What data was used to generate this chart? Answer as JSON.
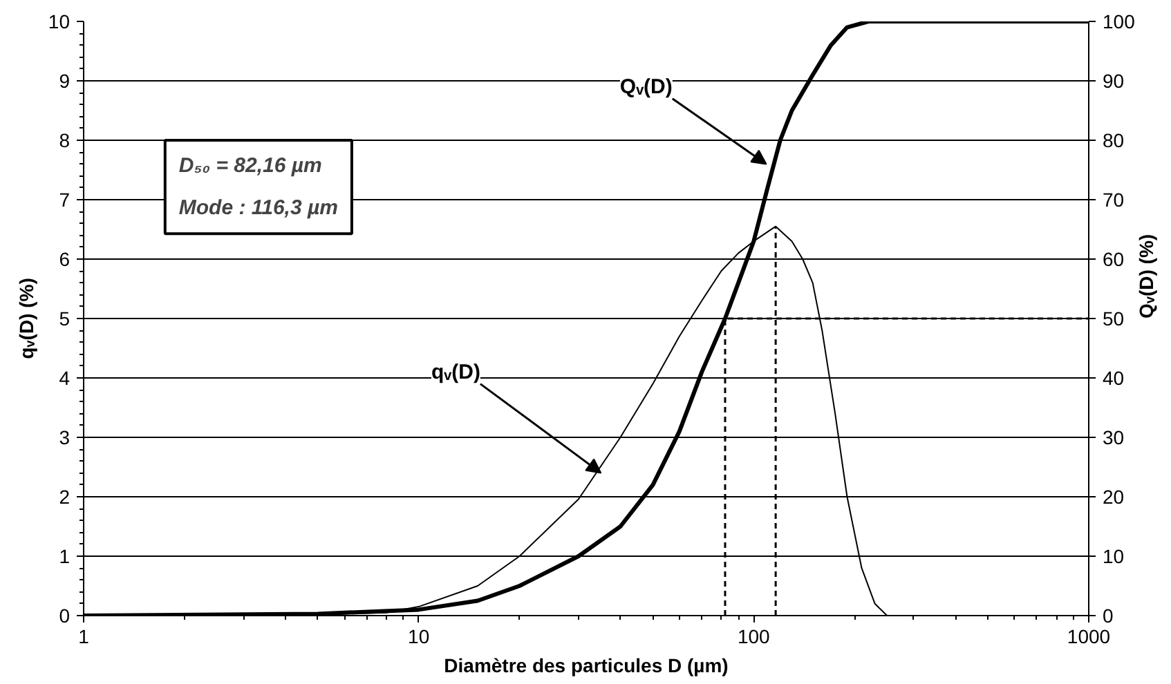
{
  "chart_data": {
    "type": "line",
    "xlabel": "Diamètre des particules D (µm)",
    "ylabel": "qᵥ(D) (%)",
    "y2label": "Qᵥ(D) (%)",
    "log": "x",
    "xlim": [
      1,
      1000
    ],
    "xticks": [
      1,
      10,
      100,
      1000
    ],
    "ylim": [
      0,
      10
    ],
    "yticks": [
      0,
      1,
      2,
      3,
      4,
      5,
      6,
      7,
      8,
      9,
      10
    ],
    "y2lim": [
      0,
      100
    ],
    "y2ticks": [
      0,
      10,
      20,
      30,
      40,
      50,
      60,
      70,
      80,
      90,
      100
    ],
    "grid": "y",
    "series": [
      {
        "color": "#000000",
        "line_style": "solid",
        "x": [
          1,
          5,
          8,
          10,
          15,
          20,
          30,
          40,
          50,
          60,
          70,
          80,
          90,
          100,
          116.3,
          130,
          140,
          150,
          160,
          175,
          190,
          210,
          230,
          250,
          1000
        ],
        "values": [
          0,
          0.02,
          0.05,
          0.15,
          0.5,
          1.0,
          1.96,
          3.0,
          3.9,
          4.7,
          5.3,
          5.8,
          6.1,
          6.3,
          6.55,
          6.3,
          6.0,
          5.6,
          4.8,
          3.4,
          2.0,
          0.8,
          0.2,
          0,
          0
        ]
      },
      {
        "color": "#000000",
        "line_style": "solid",
        "axis": "y2",
        "x": [
          1,
          5,
          10,
          15,
          20,
          30,
          40,
          50,
          60,
          70,
          82.16,
          90,
          100,
          110,
          120,
          130,
          150,
          170,
          190,
          220,
          1000
        ],
        "values": [
          0,
          0.3,
          1,
          2.5,
          5,
          10,
          15,
          22,
          31,
          41,
          50,
          56,
          63,
          72,
          80,
          85,
          91,
          96,
          99,
          100,
          100
        ]
      },
      {
        "type": "line",
        "color": "#000000",
        "line_style": "dashed",
        "axis": "y2",
        "x": [
          82.16,
          82.16,
          1000
        ],
        "values": [
          0,
          50,
          50
        ]
      },
      {
        "type": "line",
        "color": "#000000",
        "line_style": "dashed",
        "x": [
          116.3,
          116.3
        ],
        "values": [
          0,
          6.55
        ]
      }
    ],
    "annotations": [
      "D₅₀ = 82,16 µm",
      "Mode : 116,3 µm",
      {
        "text": "qᵥ(D)",
        "x": 35,
        "y": 2.4
      },
      {
        "text": "Qᵥ(D)",
        "x": 109,
        "y": 7.6
      }
    ]
  }
}
